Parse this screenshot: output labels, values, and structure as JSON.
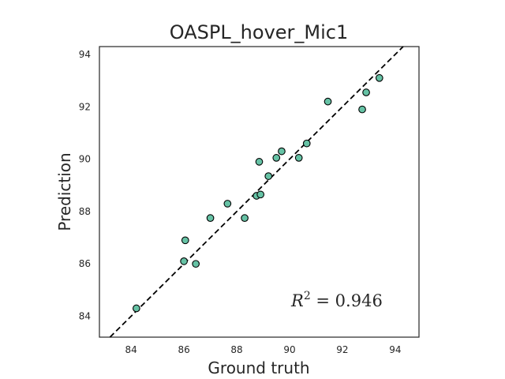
{
  "chart_data": {
    "type": "scatter",
    "title": "OASPL_hover_Mic1",
    "xlabel": "Ground truth",
    "ylabel": "Prediction",
    "xlim": [
      82.8,
      94.9
    ],
    "ylim": [
      83.2,
      94.3
    ],
    "xticks": [
      84,
      86,
      88,
      90,
      92,
      94
    ],
    "yticks": [
      84,
      86,
      88,
      90,
      92,
      94
    ],
    "grid": false,
    "points": [
      {
        "x": 84.2,
        "y": 84.3
      },
      {
        "x": 86.0,
        "y": 86.1
      },
      {
        "x": 86.05,
        "y": 86.9
      },
      {
        "x": 86.45,
        "y": 86.0
      },
      {
        "x": 87.0,
        "y": 87.75
      },
      {
        "x": 87.65,
        "y": 88.3
      },
      {
        "x": 88.3,
        "y": 87.75
      },
      {
        "x": 88.75,
        "y": 88.6
      },
      {
        "x": 88.9,
        "y": 88.65
      },
      {
        "x": 88.85,
        "y": 89.9
      },
      {
        "x": 89.2,
        "y": 89.35
      },
      {
        "x": 89.5,
        "y": 90.05
      },
      {
        "x": 89.7,
        "y": 90.3
      },
      {
        "x": 90.35,
        "y": 90.05
      },
      {
        "x": 90.65,
        "y": 90.6
      },
      {
        "x": 91.45,
        "y": 92.2
      },
      {
        "x": 92.75,
        "y": 91.9
      },
      {
        "x": 92.9,
        "y": 92.55
      },
      {
        "x": 93.4,
        "y": 93.1
      }
    ],
    "reference_line": {
      "type": "identity",
      "style": "dashed",
      "color": "#000000"
    },
    "annotation": {
      "r2_symbol": "R",
      "r2_exponent": "2",
      "r2_rest": " = 0.946",
      "position": "bottom-right"
    },
    "colors": {
      "marker_fill": "#66c2a5",
      "marker_edge": "#000000",
      "frame": "#262626"
    }
  }
}
